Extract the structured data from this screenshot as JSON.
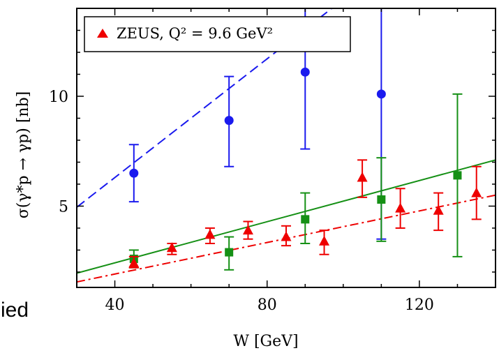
{
  "page_fragment_text": "ied",
  "chart_data": {
    "type": "scatter",
    "x_axis": {
      "range": [
        30,
        140
      ],
      "ticks": [
        40,
        80,
        120
      ],
      "tick_labels": [
        "40",
        "80",
        "120"
      ],
      "label": "W  [GeV]"
    },
    "y_axis": {
      "range": [
        1.3,
        14
      ],
      "ticks": [
        5,
        10
      ],
      "tick_labels": [
        "5",
        "10"
      ],
      "label": "σ(γ*p → γp) [nb]"
    },
    "grid": false,
    "legend": {
      "position": "top-left",
      "entries": [
        {
          "label": "ZEUS, Q² = 9.6 GeV²",
          "color": "#ee0000",
          "marker": "triangle"
        }
      ]
    },
    "series": [
      {
        "color": "#1a1aee",
        "marker": "circle",
        "points": [
          {
            "x": 45,
            "y": 6.5,
            "lo": 5.2,
            "hi": 7.8
          },
          {
            "x": 70,
            "y": 8.9,
            "lo": 6.8,
            "hi": 10.9
          },
          {
            "x": 90,
            "y": 11.1,
            "lo": 7.6,
            "hi": 14.6
          },
          {
            "x": 110,
            "y": 10.1,
            "lo": 3.5,
            "hi": 16.7
          }
        ]
      },
      {
        "color": "#159015",
        "marker": "square",
        "points": [
          {
            "x": 45,
            "y": 2.6,
            "lo": 2.2,
            "hi": 3.0
          },
          {
            "x": 70,
            "y": 2.9,
            "lo": 2.1,
            "hi": 3.6
          },
          {
            "x": 90,
            "y": 4.4,
            "lo": 3.3,
            "hi": 5.6
          },
          {
            "x": 110,
            "y": 5.3,
            "lo": 3.4,
            "hi": 7.2
          },
          {
            "x": 130,
            "y": 6.4,
            "lo": 2.7,
            "hi": 10.1
          }
        ]
      },
      {
        "label": "ZEUS, Q² = 9.6 GeV²",
        "color": "#ee0000",
        "marker": "triangle",
        "points": [
          {
            "x": 45,
            "y": 2.4,
            "lo": 2.2,
            "hi": 2.7
          },
          {
            "x": 55,
            "y": 3.1,
            "lo": 2.8,
            "hi": 3.3
          },
          {
            "x": 65,
            "y": 3.7,
            "lo": 3.3,
            "hi": 4.0
          },
          {
            "x": 75,
            "y": 3.9,
            "lo": 3.5,
            "hi": 4.3
          },
          {
            "x": 85,
            "y": 3.6,
            "lo": 3.2,
            "hi": 4.1
          },
          {
            "x": 95,
            "y": 3.4,
            "lo": 2.8,
            "hi": 3.9
          },
          {
            "x": 105,
            "y": 6.3,
            "lo": 5.4,
            "hi": 7.1
          },
          {
            "x": 115,
            "y": 4.9,
            "lo": 4.0,
            "hi": 5.8
          },
          {
            "x": 125,
            "y": 4.8,
            "lo": 3.9,
            "hi": 5.6
          },
          {
            "x": 135,
            "y": 5.6,
            "lo": 4.4,
            "hi": 6.8
          }
        ]
      }
    ],
    "fit_lines": [
      {
        "color": "#1a1aee",
        "style": "dashed",
        "x": [
          30,
          97
        ],
        "y": [
          4.95,
          14
        ]
      },
      {
        "color": "#159015",
        "style": "solid",
        "x": [
          30,
          140
        ],
        "y": [
          1.95,
          7.1
        ]
      },
      {
        "color": "#ee0000",
        "style": "dash-dot",
        "x": [
          30,
          140
        ],
        "y": [
          1.55,
          5.5
        ]
      }
    ]
  }
}
